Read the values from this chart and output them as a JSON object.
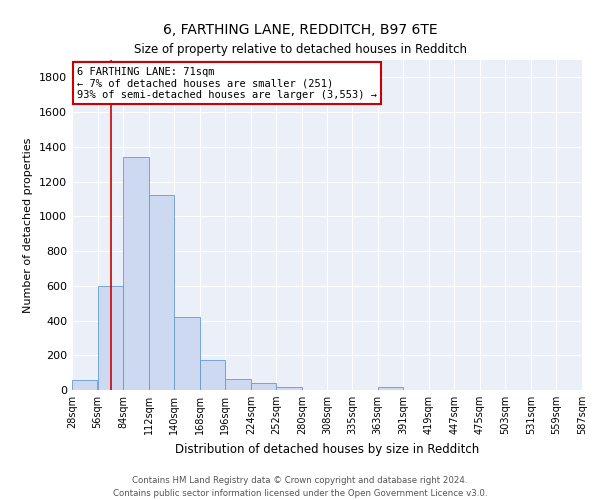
{
  "title1": "6, FARTHING LANE, REDDITCH, B97 6TE",
  "title2": "Size of property relative to detached houses in Redditch",
  "xlabel": "Distribution of detached houses by size in Redditch",
  "ylabel": "Number of detached properties",
  "footnote1": "Contains HM Land Registry data © Crown copyright and database right 2024.",
  "footnote2": "Contains public sector information licensed under the Open Government Licence v3.0.",
  "annotation_line1": "6 FARTHING LANE: 71sqm",
  "annotation_line2": "← 7% of detached houses are smaller (251)",
  "annotation_line3": "93% of semi-detached houses are larger (3,553) →",
  "property_size": 71,
  "bin_edges": [
    28,
    56,
    84,
    112,
    140,
    168,
    196,
    224,
    252,
    280,
    308,
    335,
    363,
    391,
    419,
    447,
    475,
    503,
    531,
    559,
    587
  ],
  "bin_counts": [
    60,
    600,
    1340,
    1120,
    420,
    170,
    65,
    40,
    20,
    0,
    0,
    0,
    20,
    0,
    0,
    0,
    0,
    0,
    0,
    0
  ],
  "bar_color": "#ccd9f0",
  "bar_edge_color": "#6699cc",
  "vline_color": "#cc0000",
  "vline_x": 71,
  "annotation_box_edge": "#cc0000",
  "background_color": "#eaeff8",
  "ylim": [
    0,
    1900
  ],
  "yticks": [
    0,
    200,
    400,
    600,
    800,
    1000,
    1200,
    1400,
    1600,
    1800
  ]
}
